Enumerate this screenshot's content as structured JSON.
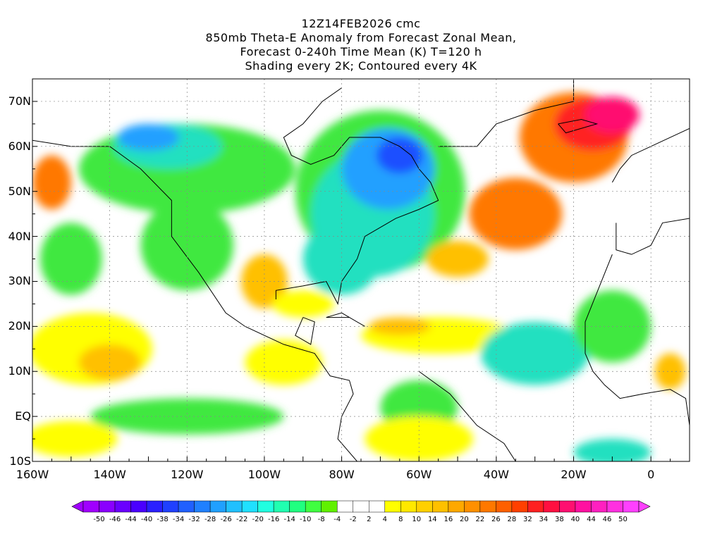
{
  "title": {
    "line1": "12Z14FEB2026 cmc",
    "line2": "850mb Theta-E Anomaly from Forecast Zonal Mean,",
    "line3": "Forecast 0-240h Time Mean (K) T=120 h",
    "line4": "Shading every 2K; Contoured every 4K"
  },
  "axes": {
    "lat_ticks": [
      "70N",
      "60N",
      "50N",
      "40N",
      "30N",
      "20N",
      "10N",
      "EQ",
      "10S"
    ],
    "lon_ticks": [
      "160W",
      "140W",
      "120W",
      "100W",
      "80W",
      "60W",
      "40W",
      "20W",
      "0"
    ],
    "lat_range": [
      -10,
      75
    ],
    "lon_range": [
      -160,
      10
    ]
  },
  "colorbar": {
    "labels": [
      "-50",
      "-46",
      "-44",
      "-40",
      "-38",
      "-34",
      "-32",
      "-28",
      "-26",
      "-22",
      "-20",
      "-16",
      "-14",
      "-10",
      "-8",
      "-4",
      "-2",
      "2",
      "4",
      "8",
      "10",
      "14",
      "16",
      "20",
      "22",
      "26",
      "28",
      "32",
      "34",
      "38",
      "40",
      "44",
      "46",
      "50"
    ],
    "colors": [
      "#a000ff",
      "#8a00ff",
      "#6a00ff",
      "#4a00ff",
      "#2a20ff",
      "#2040ff",
      "#2060ff",
      "#2080ff",
      "#20a0ff",
      "#20c0ff",
      "#20e0ff",
      "#20ffe0",
      "#20ffb0",
      "#20ff80",
      "#40ff40",
      "#60f000",
      "#ffffff",
      "#ffffff",
      "#ffffff",
      "#ffff00",
      "#ffe800",
      "#ffd000",
      "#ffc000",
      "#ffa800",
      "#ff9000",
      "#ff7800",
      "#ff6000",
      "#ff4000",
      "#ff2020",
      "#ff1040",
      "#ff1070",
      "#ff10a0",
      "#ff20c0",
      "#ff30e0",
      "#ff40ff"
    ]
  },
  "map_colors": {
    "cold_strong": "#1e50ff",
    "cold": "#20a0ff",
    "cool": "#20e0c0",
    "mild_cool": "#40e840",
    "neutral": "#ffffff",
    "warm_light": "#ffff00",
    "warm": "#ffc000",
    "hot": "#ff7800",
    "very_hot": "#ff2020",
    "extreme": "#ff1070"
  }
}
